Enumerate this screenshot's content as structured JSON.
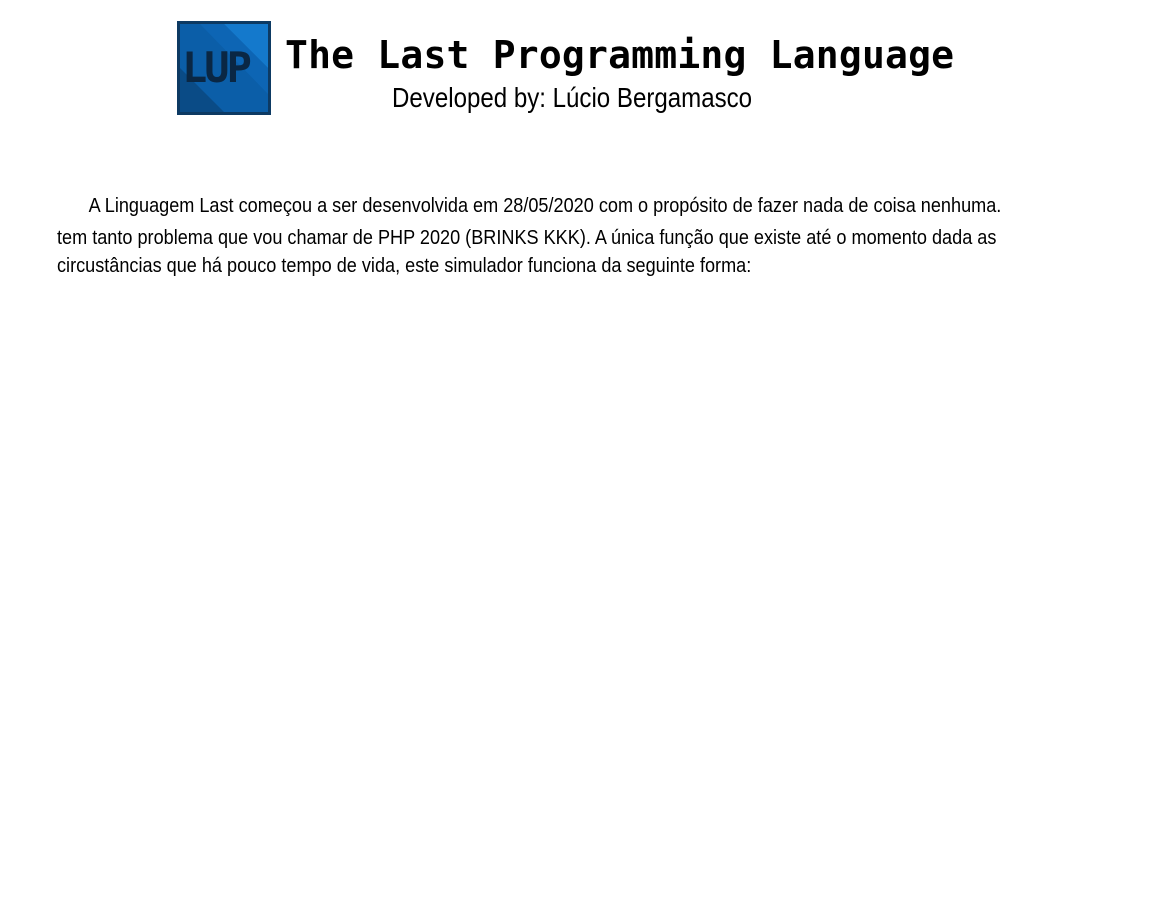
{
  "header": {
    "logo": {
      "text": "LUP",
      "colors": {
        "background": "#0b5ea8",
        "light": "#1479cc",
        "dark": "#0a4b86",
        "border": "#0d3a63",
        "text": "#0a2744"
      }
    },
    "title": "The Last Programming Language",
    "subtitle": "Developed by: Lúcio Bergamasco"
  },
  "intro": {
    "line1": "A Linguagem Last começou a ser desenvolvida em 28/05/2020 com o propósito de fazer nada de coisa nenhuma.",
    "line2": "tem tanto problema que vou chamar de PHP 2020 (BRINKS KKK).  A única função que existe até o momento dada as",
    "line3": "circustâncias que há pouco tempo de vida, este simulador funciona da seguinte forma:"
  }
}
